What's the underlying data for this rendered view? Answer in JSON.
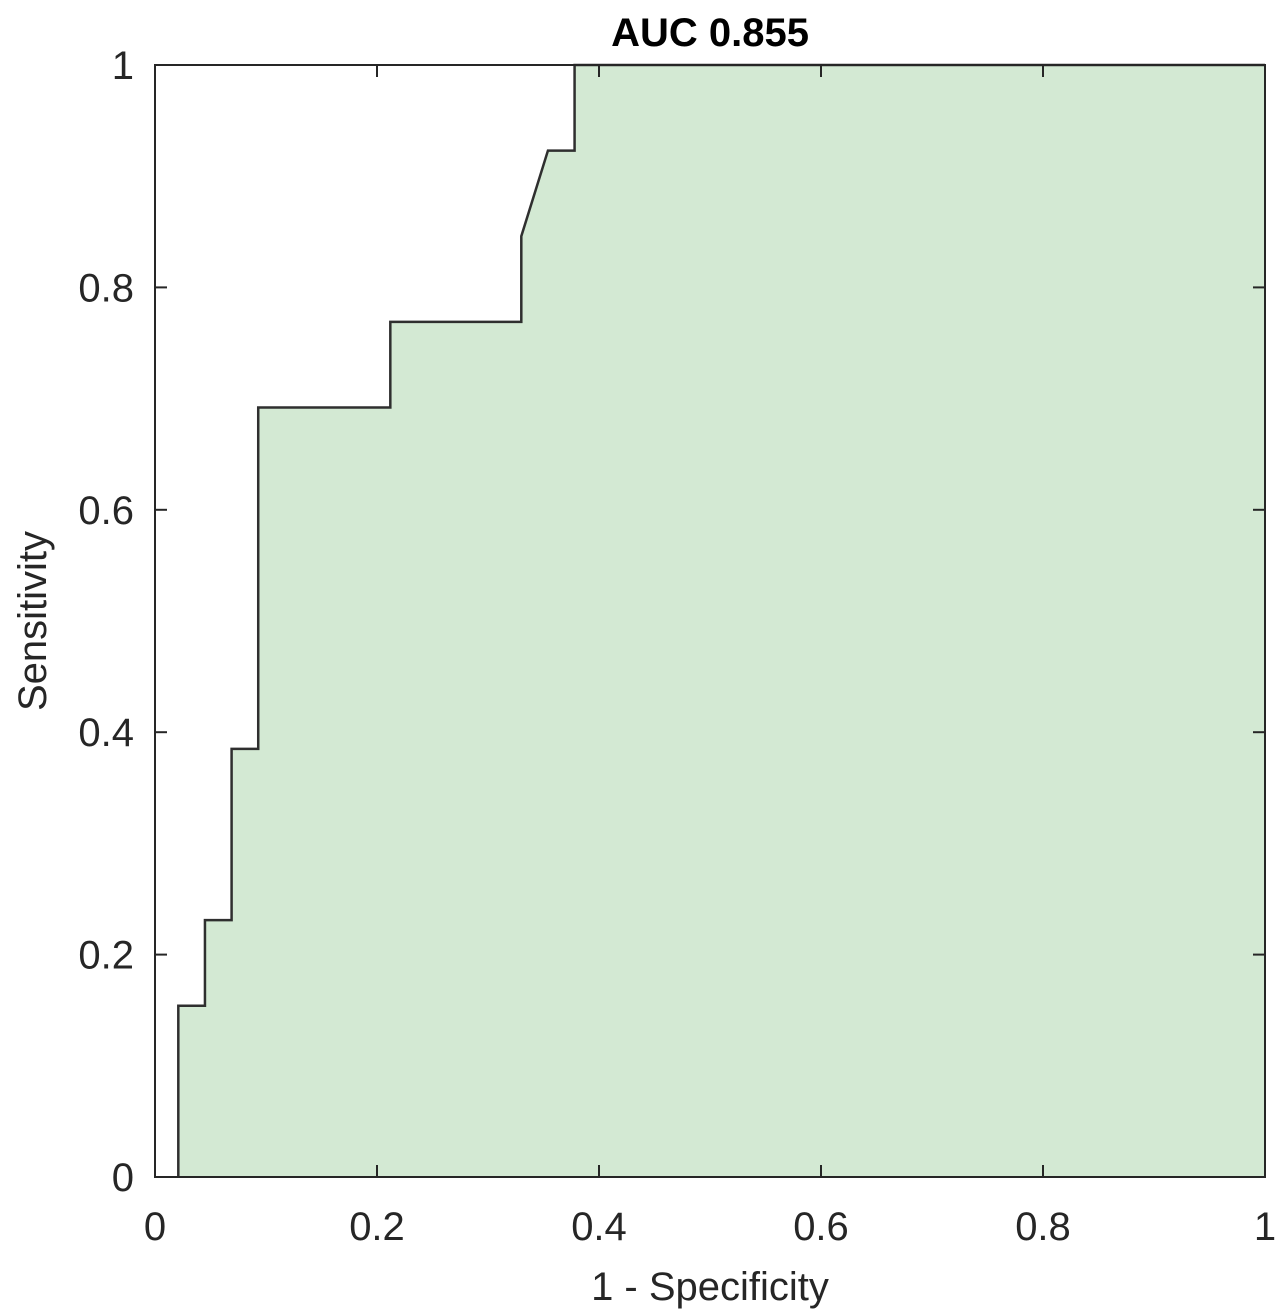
{
  "chart_data": {
    "type": "area",
    "title": "AUC 0.855",
    "xlabel": "1 - Specificity",
    "ylabel": "Sensitivity",
    "xlim": [
      0,
      1
    ],
    "ylim": [
      0,
      1
    ],
    "xticks": [
      0,
      0.2,
      0.4,
      0.6,
      0.8,
      1
    ],
    "xtick_labels": [
      "0",
      "0.2",
      "0.4",
      "0.6",
      "0.8",
      "1"
    ],
    "yticks": [
      0,
      0.2,
      0.4,
      0.6,
      0.8,
      1
    ],
    "ytick_labels": [
      "0",
      "0.2",
      "0.4",
      "0.6",
      "0.8",
      "1"
    ],
    "grid": false,
    "fill_color": "#d3e9d3",
    "line_color": "#2f2f2f",
    "series": [
      {
        "x": [
          0.021,
          0.021,
          0.045,
          0.045,
          0.069,
          0.069,
          0.093,
          0.093,
          0.212,
          0.212,
          0.33,
          0.33,
          0.354,
          0.378,
          0.378,
          1.0
        ],
        "y": [
          0.0,
          0.154,
          0.154,
          0.231,
          0.231,
          0.385,
          0.385,
          0.692,
          0.692,
          0.769,
          0.769,
          0.846,
          0.923,
          0.923,
          1.0,
          1.0
        ]
      }
    ]
  }
}
